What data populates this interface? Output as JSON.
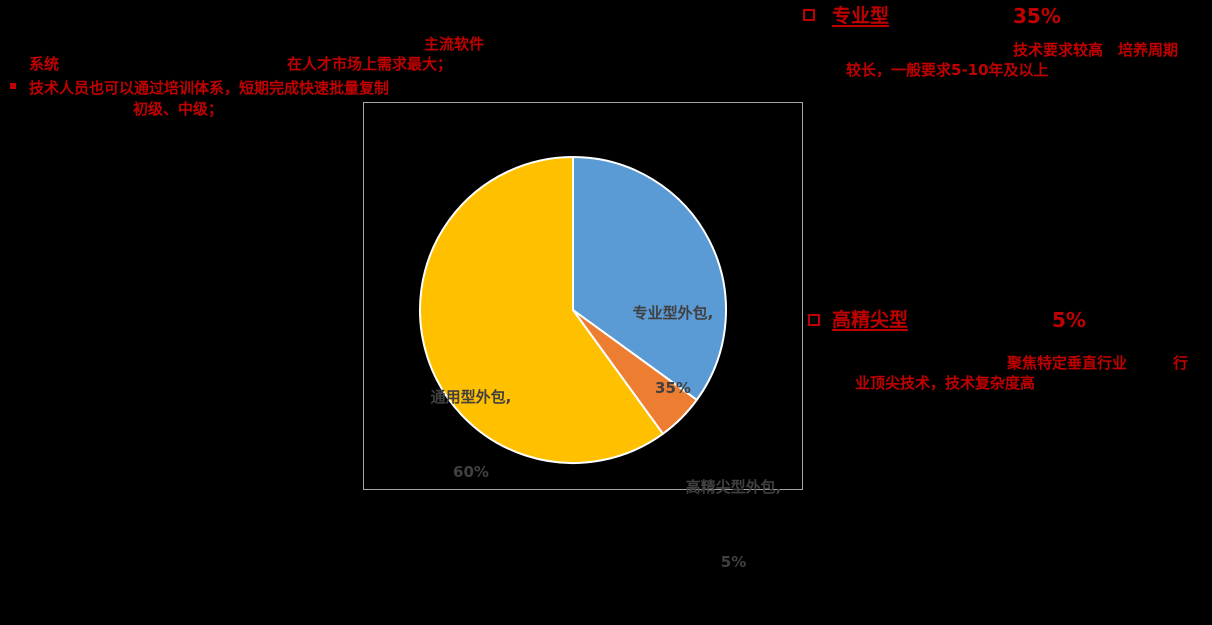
{
  "colors": {
    "accent_red": "#C00000",
    "pie_label_text": "#404040",
    "chart_border": "#A6A6A6",
    "background": "#000000",
    "slice_stroke": "#FFFFFF"
  },
  "annotations": {
    "top_center": "主流软件",
    "system": "系统",
    "market_demand": "在人才市场上需求最大；",
    "training": "技术人员也可以通过培训体系，短期完成快速批量复制",
    "levels": "初级、中级；"
  },
  "sections": {
    "professional": {
      "title": "专业型",
      "percent": "35%",
      "desc_line1": "技术要求较高　培养周期",
      "desc_line2": "较长，一般要求5-10年及以上"
    },
    "highend": {
      "title": "高精尖型",
      "percent": "5%",
      "desc_line1a": "聚焦特定垂直行业",
      "desc_line1b": "行",
      "desc_line2": "业顶尖技术，技术复杂度高"
    }
  },
  "chart_data": {
    "type": "pie",
    "start_angle_deg": 0,
    "direction": "clockwise",
    "legend_position": "none",
    "slices": [
      {
        "name": "专业型外包",
        "value": 35,
        "color": "#5B9BD5",
        "label_text": "专业型外包,",
        "pct_text": "35%"
      },
      {
        "name": "高精尖型外包",
        "value": 5,
        "color": "#ED7D31",
        "label_text": "高精尖型外包,",
        "pct_text": "5%"
      },
      {
        "name": "通用型外包",
        "value": 60,
        "color": "#FFC000",
        "label_text": "通用型外包,",
        "pct_text": "60%"
      }
    ]
  }
}
